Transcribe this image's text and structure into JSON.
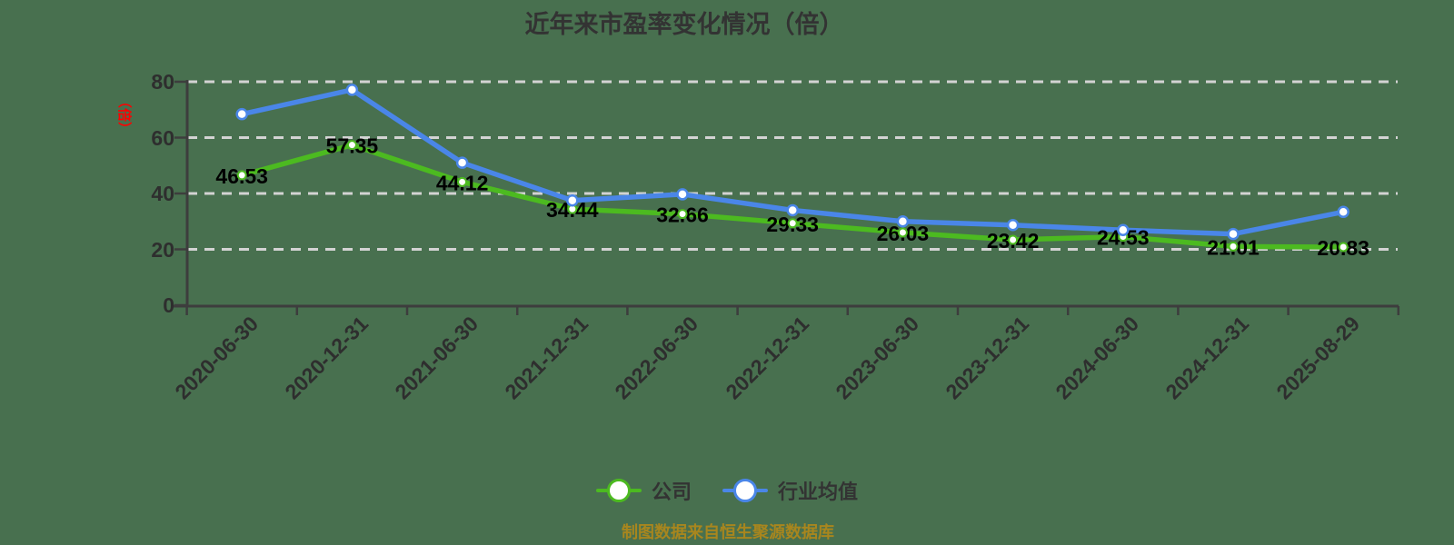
{
  "title": "近年来市盈率变化情况（倍）",
  "y_axis_unit": "（倍）",
  "footer": "制图数据来自恒生聚源数据库",
  "colors": {
    "background": "#48704f",
    "company_green": "#4cba20",
    "industry_blue": "#4a86e8",
    "gridline": "#d3d3d3",
    "axis": "#3d3d3d",
    "axis_text": "#2e2e2e",
    "title_text": "#333333",
    "data_label": "#000000",
    "footer_gold": "#a8861e",
    "unit_red": "#ff0000",
    "marker_fill": "#ffffff"
  },
  "chart_data": {
    "type": "line",
    "x": [
      "2020-06-30",
      "2020-12-31",
      "2021-06-30",
      "2021-12-31",
      "2022-06-30",
      "2022-12-31",
      "2023-06-30",
      "2023-12-31",
      "2024-06-30",
      "2024-12-31",
      "2025-08-29"
    ],
    "series": [
      {
        "name": "公司",
        "color": "#4cba20",
        "values": [
          46.53,
          57.35,
          44.12,
          34.44,
          32.66,
          29.33,
          26.03,
          23.42,
          24.53,
          21.01,
          20.83
        ],
        "labels_shown": true
      },
      {
        "name": "行业均值",
        "color": "#4a86e8",
        "values": [
          68.4,
          77.1,
          51.0,
          37.5,
          39.7,
          34.0,
          30.0,
          28.7,
          26.9,
          25.5,
          33.4
        ],
        "labels_shown": false,
        "values_estimated": true
      }
    ],
    "ylabel": "（倍）",
    "xlabel": "",
    "yticks": [
      0,
      20,
      40,
      60,
      80
    ],
    "ylim": [
      0,
      80
    ],
    "grid": "dashed-horizontal",
    "legend_position": "bottom"
  }
}
